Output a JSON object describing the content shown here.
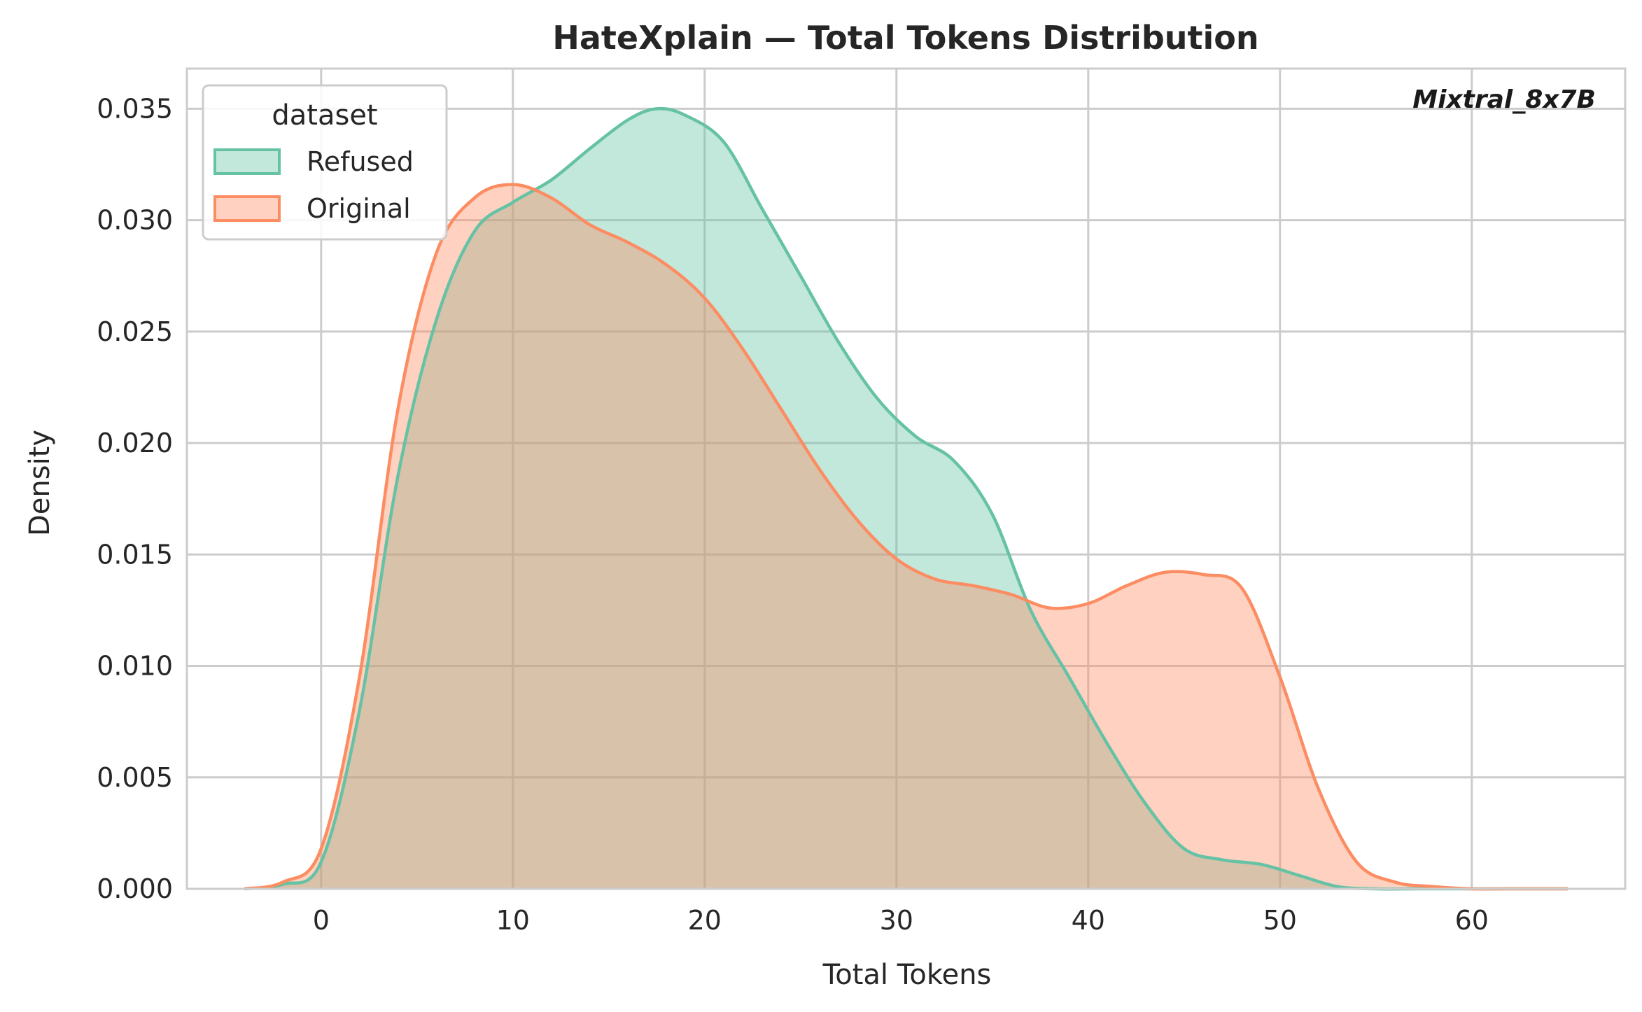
{
  "chart_data": {
    "type": "area",
    "title": "HateXplain — Total Tokens Distribution",
    "xlabel": "Total Tokens",
    "ylabel": "Density",
    "annotation": "Mixtral_8x7B",
    "xlim": [
      -7,
      68
    ],
    "ylim": [
      0,
      0.0368
    ],
    "xticks": [
      0,
      10,
      20,
      30,
      40,
      50,
      60
    ],
    "yticks": [
      0.0,
      0.005,
      0.01,
      0.015,
      0.02,
      0.025,
      0.03,
      0.035
    ],
    "ytick_labels": [
      "0.000",
      "0.005",
      "0.010",
      "0.015",
      "0.020",
      "0.025",
      "0.030",
      "0.035"
    ],
    "grid": true,
    "legend": {
      "title": "dataset",
      "placement": "top-left"
    },
    "series": [
      {
        "name": "Refused",
        "color": "#66c2a5",
        "x": [
          -4,
          -2,
          0,
          2,
          4,
          6,
          8,
          10,
          12,
          14,
          16,
          17.5,
          19,
          21,
          23,
          25,
          27,
          29,
          31,
          33,
          35,
          37,
          39,
          41,
          43,
          45,
          47,
          49,
          51,
          53,
          55,
          57,
          59,
          62,
          65
        ],
        "y": [
          0.0,
          0.0002,
          0.0012,
          0.008,
          0.0185,
          0.0255,
          0.0295,
          0.0308,
          0.0318,
          0.0332,
          0.0345,
          0.035,
          0.0347,
          0.0335,
          0.0305,
          0.0275,
          0.0245,
          0.022,
          0.0203,
          0.0192,
          0.0168,
          0.0125,
          0.0095,
          0.0065,
          0.0038,
          0.0018,
          0.0013,
          0.0011,
          0.0006,
          0.0001,
          0.0,
          0.0,
          0.0,
          0.0,
          0.0
        ]
      },
      {
        "name": "Original",
        "color": "#fc8d62",
        "x": [
          -4,
          -2,
          0,
          2,
          4,
          6,
          8,
          10,
          12,
          14,
          16,
          18,
          20,
          22,
          24,
          26,
          28,
          30,
          32,
          34,
          36,
          38,
          40,
          42,
          44,
          46,
          48,
          50,
          52,
          54,
          56,
          58,
          60,
          62,
          65
        ],
        "y": [
          0.0,
          0.0003,
          0.0018,
          0.0095,
          0.0215,
          0.0285,
          0.031,
          0.0316,
          0.031,
          0.0298,
          0.029,
          0.028,
          0.0265,
          0.0242,
          0.0215,
          0.0188,
          0.0165,
          0.0148,
          0.0139,
          0.0136,
          0.0132,
          0.0126,
          0.0128,
          0.0136,
          0.0142,
          0.0141,
          0.0135,
          0.0095,
          0.0045,
          0.0012,
          0.0003,
          0.0001,
          0.0,
          0.0,
          0.0
        ]
      }
    ]
  }
}
